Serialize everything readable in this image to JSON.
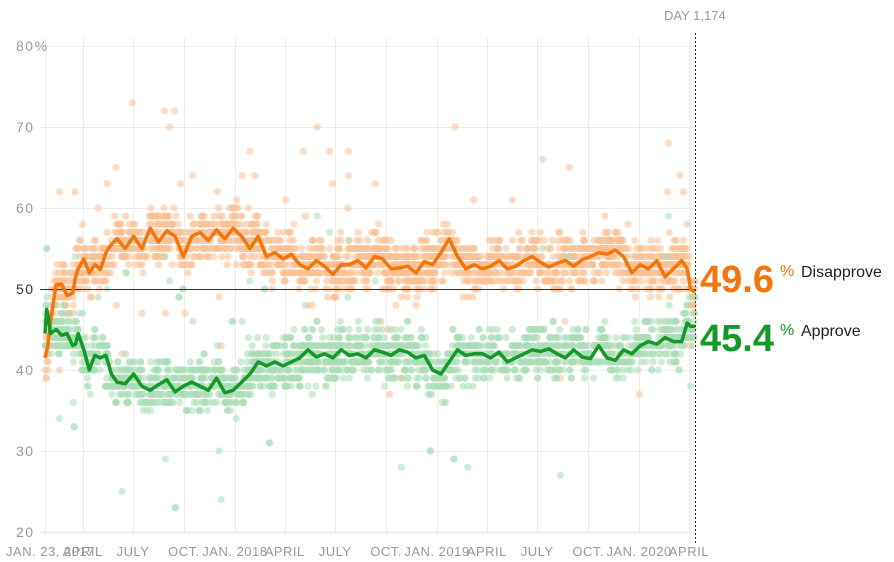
{
  "chart_data": {
    "type": "line",
    "title": "",
    "xlabel": "",
    "ylabel": "",
    "ylim": [
      20,
      80
    ],
    "y_ticks": [
      "80%",
      "70",
      "60",
      "50",
      "40",
      "30",
      "20"
    ],
    "y_tick_values": [
      80,
      70,
      60,
      50,
      40,
      30,
      20
    ],
    "x_range_days": [
      0,
      1174
    ],
    "x_ticks": [
      {
        "label": "JAN. 23, 2017",
        "day": 0
      },
      {
        "label": "APRIL",
        "day": 68
      },
      {
        "label": "JULY",
        "day": 159
      },
      {
        "label": "OCT.",
        "day": 251
      },
      {
        "label": "JAN. 2018",
        "day": 343
      },
      {
        "label": "APRIL",
        "day": 433
      },
      {
        "label": "JULY",
        "day": 524
      },
      {
        "label": "OCT.",
        "day": 616
      },
      {
        "label": "JAN. 2019",
        "day": 708
      },
      {
        "label": "APRIL",
        "day": 798
      },
      {
        "label": "JULY",
        "day": 889
      },
      {
        "label": "OCT.",
        "day": 981
      },
      {
        "label": "JAN. 2020",
        "day": 1073
      },
      {
        "label": "APRIL",
        "day": 1163
      }
    ],
    "grid": true,
    "reference_line": 50,
    "current_marker": {
      "label": "DAY 1,174",
      "day": 1174
    },
    "series": [
      {
        "name": "Disapprove",
        "color": "#f3760b",
        "dot_color": "#fbbf92",
        "final_value": "49.6",
        "x": [
          0,
          5,
          10,
          20,
          30,
          40,
          50,
          55,
          60,
          70,
          80,
          90,
          100,
          110,
          120,
          130,
          145,
          160,
          175,
          190,
          205,
          220,
          235,
          250,
          265,
          280,
          295,
          310,
          325,
          340,
          355,
          370,
          385,
          400,
          415,
          430,
          445,
          460,
          475,
          490,
          505,
          520,
          535,
          550,
          565,
          580,
          595,
          610,
          625,
          640,
          655,
          670,
          685,
          700,
          715,
          730,
          745,
          760,
          775,
          790,
          805,
          820,
          835,
          850,
          865,
          880,
          895,
          910,
          925,
          940,
          955,
          970,
          985,
          1000,
          1015,
          1030,
          1045,
          1060,
          1075,
          1090,
          1105,
          1120,
          1135,
          1150,
          1160,
          1166,
          1174
        ],
        "values": [
          41.5,
          43,
          46,
          50.5,
          50.6,
          49.2,
          49.5,
          51.5,
          52.5,
          53.7,
          52.0,
          53.0,
          52.4,
          54.5,
          55.5,
          56.2,
          55.0,
          56.5,
          55.0,
          57.5,
          55.8,
          57.2,
          56.5,
          54.0,
          56.5,
          57.0,
          56.0,
          57.3,
          56.2,
          57.5,
          56.5,
          55.0,
          56.5,
          54.0,
          54.5,
          53.7,
          54.3,
          53.0,
          52.5,
          53.5,
          52.8,
          51.8,
          53.0,
          53.0,
          53.5,
          52.6,
          54.0,
          53.7,
          52.5,
          52.6,
          52.8,
          52.0,
          53.4,
          53.0,
          54.5,
          56.2,
          54.0,
          52.5,
          53.0,
          52.5,
          52.8,
          53.5,
          52.5,
          52.8,
          53.5,
          54.0,
          53.3,
          52.7,
          53.2,
          53.5,
          52.8,
          53.6,
          54.0,
          54.5,
          54.3,
          54.8,
          54.0,
          52.0,
          53.0,
          52.5,
          53.5,
          51.5,
          52.5,
          53.5,
          52.5,
          50.0,
          49.6
        ]
      },
      {
        "name": "Approve",
        "color": "#129926",
        "dot_color": "#a9ddb6",
        "final_value": "45.4",
        "x": [
          0,
          3,
          6,
          10,
          20,
          30,
          40,
          50,
          55,
          60,
          70,
          80,
          90,
          100,
          110,
          120,
          130,
          145,
          160,
          175,
          190,
          205,
          220,
          235,
          250,
          265,
          280,
          295,
          310,
          325,
          340,
          355,
          370,
          385,
          400,
          415,
          430,
          445,
          460,
          475,
          490,
          505,
          520,
          535,
          550,
          565,
          580,
          595,
          610,
          625,
          640,
          655,
          670,
          685,
          700,
          715,
          730,
          745,
          760,
          775,
          790,
          805,
          820,
          835,
          850,
          865,
          880,
          895,
          910,
          925,
          940,
          955,
          970,
          985,
          1000,
          1015,
          1030,
          1045,
          1060,
          1075,
          1090,
          1105,
          1120,
          1135,
          1150,
          1160,
          1166,
          1174
        ],
        "values": [
          44.5,
          47.5,
          46.5,
          44.5,
          45.0,
          44.3,
          44.5,
          43.0,
          43.2,
          44.5,
          42.5,
          40.0,
          41.8,
          41.5,
          41.8,
          39.5,
          38.5,
          38.3,
          39.5,
          38.0,
          37.5,
          38.2,
          38.8,
          37.3,
          38.0,
          38.5,
          38.0,
          37.5,
          39.0,
          37.2,
          37.5,
          38.5,
          39.5,
          41.0,
          40.5,
          41.0,
          40.5,
          41.0,
          41.5,
          42.5,
          41.6,
          42.0,
          41.5,
          42.5,
          41.8,
          42.0,
          41.5,
          42.5,
          42.2,
          41.8,
          42.5,
          42.2,
          41.5,
          41.8,
          40.0,
          39.5,
          41.0,
          42.5,
          41.8,
          42.0,
          42.0,
          41.5,
          42.2,
          41.0,
          41.5,
          42.0,
          42.5,
          42.3,
          42.6,
          42.0,
          41.5,
          42.5,
          41.6,
          41.4,
          43.0,
          41.5,
          41.2,
          42.5,
          42.0,
          43.0,
          43.5,
          43.2,
          44.0,
          43.5,
          43.5,
          45.8,
          45.4,
          45.4
        ]
      }
    ]
  },
  "labels": {
    "disapprove": {
      "value": "49.6",
      "pct": "%",
      "text": "Disapprove",
      "color": "#f3760b"
    },
    "approve": {
      "value": "45.4",
      "pct": "%",
      "text": "Approve",
      "color": "#129926"
    },
    "day_marker": "DAY 1,174"
  }
}
